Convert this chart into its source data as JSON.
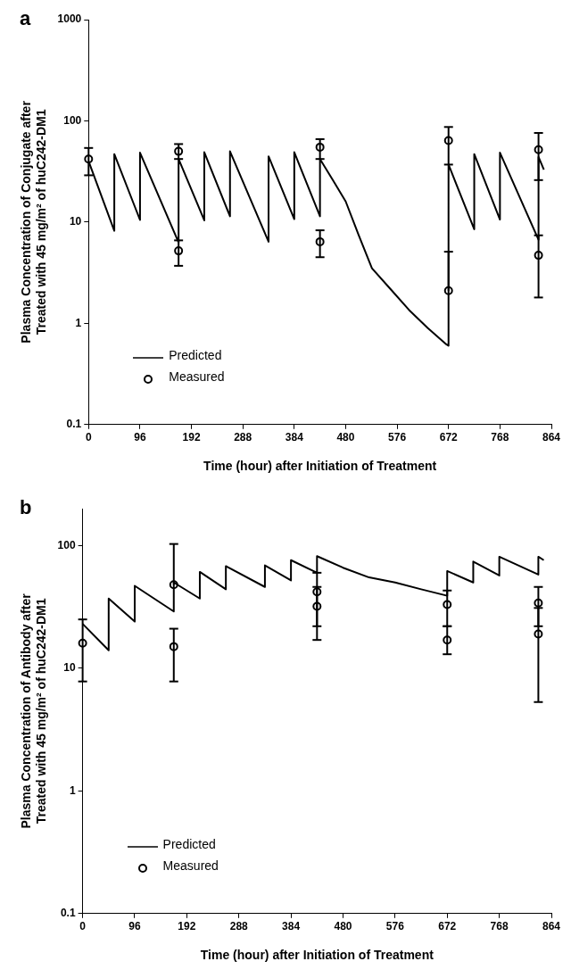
{
  "chart_data": [
    {
      "type": "line",
      "title": "a",
      "xlabel": "Time (hour) after Initiation of Treatment",
      "ylabel": "Plasma Concentration of Conjugate after\nTreated with 45 mg/m² of huC242-DM1",
      "log": "y",
      "grid": false,
      "legend": "bottom left",
      "xlim": [
        0,
        864
      ],
      "xticks": [
        0,
        96,
        192,
        288,
        384,
        480,
        576,
        672,
        768,
        864
      ],
      "ylim": [
        0.1,
        1000
      ],
      "yticks": [
        0.1,
        1,
        10,
        100,
        1000
      ],
      "series": [
        {
          "name": "Predicted",
          "type": "line",
          "color": "#000000",
          "marker": "none",
          "line_style": "solid",
          "x": [
            0,
            48,
            48,
            96,
            96,
            168,
            168,
            216,
            216,
            264,
            264,
            336,
            336,
            384,
            384,
            432,
            432,
            456,
            480,
            504,
            529,
            563,
            598,
            633,
            668,
            672,
            672,
            720,
            720,
            768,
            768,
            840,
            840,
            850
          ],
          "values": [
            40,
            8.2,
            47,
            10.5,
            48.5,
            6.3,
            42,
            10.4,
            49,
            11.4,
            50,
            6.4,
            44.6,
            10.7,
            49,
            11.4,
            42,
            26,
            16,
            7.5,
            3.5,
            2.2,
            1.36,
            0.9,
            0.62,
            0.6,
            37,
            8.5,
            47,
            10.6,
            48.5,
            6.7,
            44,
            33
          ]
        },
        {
          "name": "Measured",
          "type": "scatter",
          "color": "#000000",
          "marker": "circle",
          "x": [
            0,
            168,
            168,
            432,
            432,
            672,
            672,
            840,
            840
          ],
          "values": [
            42,
            50,
            5.2,
            55,
            6.4,
            64,
            2.1,
            52,
            4.7
          ],
          "errors": [
            [
              29,
              54
            ],
            [
              42,
              59
            ],
            [
              3.7,
              6.6
            ],
            [
              42,
              66
            ],
            [
              4.5,
              8.3
            ],
            [
              37,
              87
            ],
            [
              2.1,
              5.1
            ],
            [
              26,
              76
            ],
            [
              1.8,
              7.4
            ]
          ]
        }
      ]
    },
    {
      "type": "line",
      "title": "b",
      "xlabel": "Time (hour) after Initiation of Treatment",
      "ylabel": "Plasma Concentration of Antibody after\nTreated with 45 mg/m² of huC242-DM1",
      "log": "y",
      "grid": false,
      "legend": "bottom left",
      "xlim": [
        0,
        864
      ],
      "xticks": [
        0,
        96,
        192,
        288,
        384,
        480,
        576,
        672,
        768,
        864
      ],
      "ylim": [
        0.1,
        200
      ],
      "yticks": [
        0.1,
        1,
        10,
        100
      ],
      "series": [
        {
          "name": "Predicted",
          "type": "line",
          "color": "#000000",
          "marker": "none",
          "line_style": "solid",
          "x": [
            0,
            48,
            48,
            96,
            96,
            168,
            168,
            216,
            216,
            264,
            264,
            336,
            336,
            384,
            384,
            432,
            432,
            480,
            528,
            576,
            624,
            672,
            672,
            720,
            720,
            768,
            768,
            840,
            840,
            850
          ],
          "values": [
            23,
            14,
            37,
            24,
            47,
            29,
            50,
            37,
            61,
            44,
            68,
            46,
            69,
            52,
            76,
            60,
            82,
            66,
            55,
            50,
            44,
            39,
            62,
            50,
            74,
            57,
            81,
            58,
            81,
            76
          ]
        },
        {
          "name": "Measured",
          "type": "scatter",
          "color": "#000000",
          "marker": "circle",
          "x": [
            0,
            168,
            168,
            432,
            432,
            672,
            672,
            840,
            840
          ],
          "values": [
            16,
            48,
            15,
            42,
            32,
            33,
            17,
            34,
            19
          ],
          "errors": [
            [
              7.8,
              25
            ],
            [
              48,
              103
            ],
            [
              7.8,
              21
            ],
            [
              22,
              60
            ],
            [
              17,
              46
            ],
            [
              22,
              43
            ],
            [
              13,
              22
            ],
            [
              22,
              46
            ],
            [
              5.3,
              31
            ]
          ]
        }
      ]
    }
  ]
}
